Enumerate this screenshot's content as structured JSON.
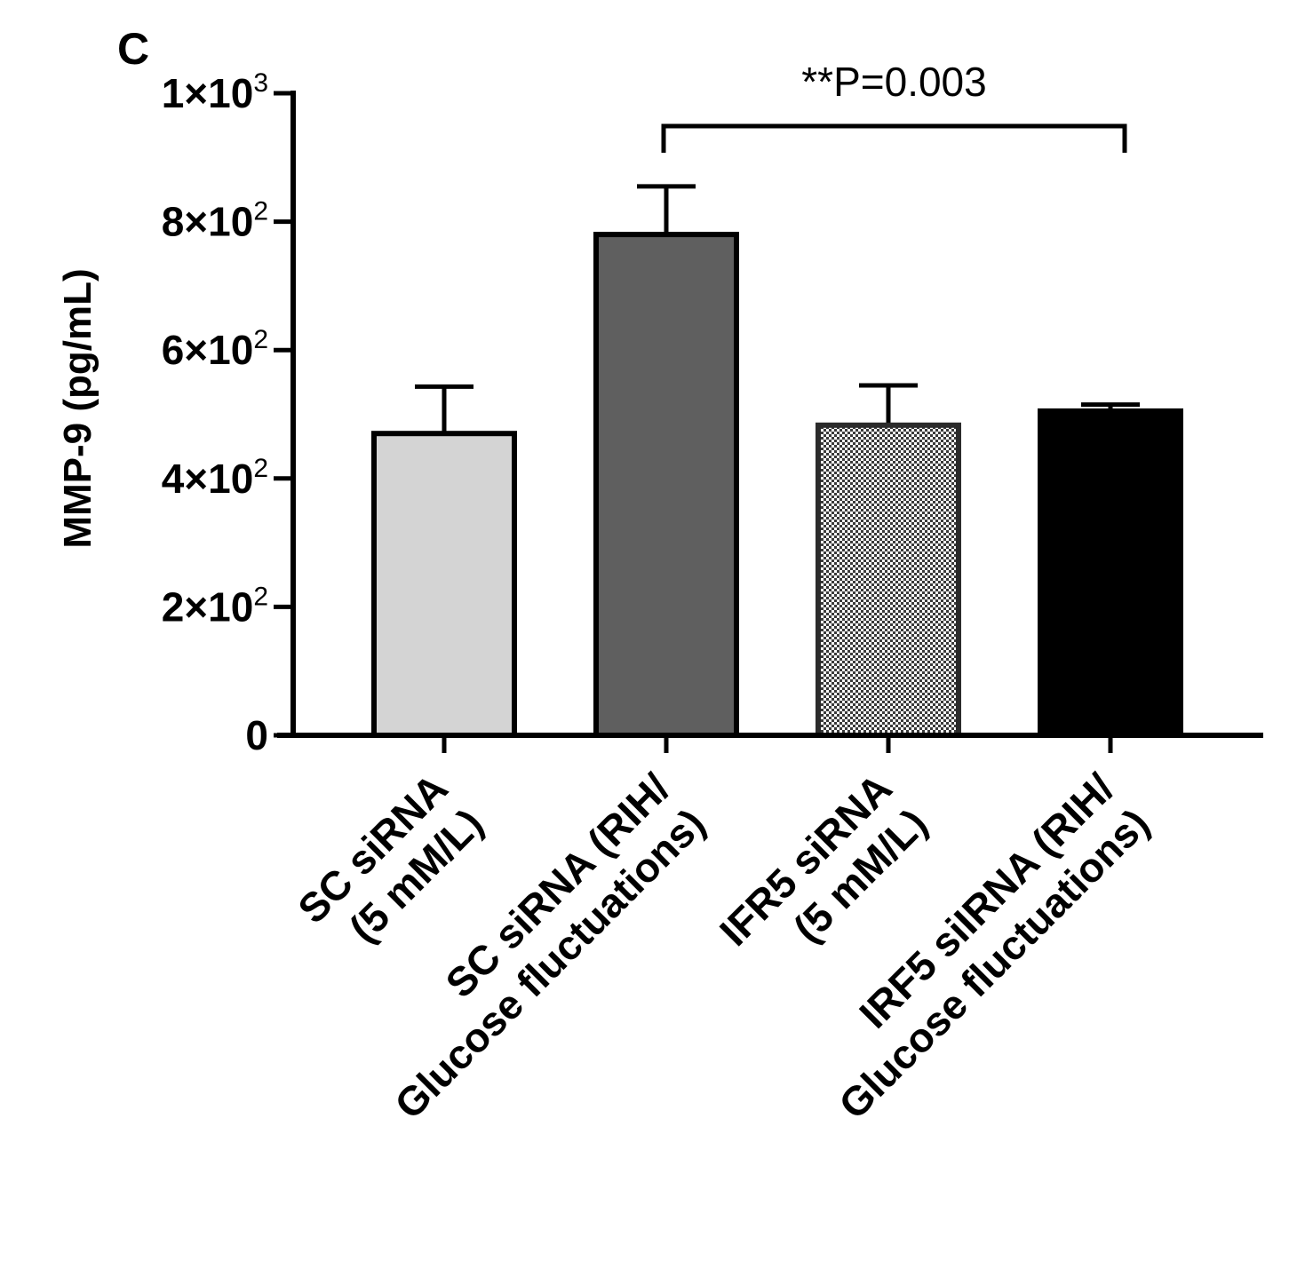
{
  "panel_label": "C",
  "chart_data": {
    "type": "bar",
    "title": "",
    "ylabel": "MMP-9 (pg/mL)",
    "xlabel": "",
    "ylim": [
      0,
      1000
    ],
    "yticks": [
      {
        "value": 0,
        "mantissa": "0",
        "exp": ""
      },
      {
        "value": 200,
        "mantissa": "2×10",
        "exp": "2"
      },
      {
        "value": 400,
        "mantissa": "4×10",
        "exp": "2"
      },
      {
        "value": 600,
        "mantissa": "6×10",
        "exp": "2"
      },
      {
        "value": 800,
        "mantissa": "8×10",
        "exp": "2"
      },
      {
        "value": 1000,
        "mantissa": "1×10",
        "exp": "3"
      }
    ],
    "categories": [
      [
        "SC siRNA",
        "(5 mM/L)"
      ],
      [
        "SC siRNA (RIH/",
        "Glucose fluctuations)"
      ],
      [
        "IFR5 siRNA",
        "(5 mM/L)"
      ],
      [
        "IRF5 siIRNA (RIH/",
        "Glucose fluctuations)"
      ]
    ],
    "values": [
      470,
      780,
      483,
      505
    ],
    "errors": [
      73,
      75,
      62,
      10
    ],
    "colors": [
      "#d4d4d4",
      "#5f5f5f",
      "checker",
      "#000000"
    ],
    "annotation": {
      "text": "**P=0.003",
      "from_index": 1,
      "to_index": 3,
      "y": 900
    },
    "grid": false,
    "legend": "none"
  }
}
